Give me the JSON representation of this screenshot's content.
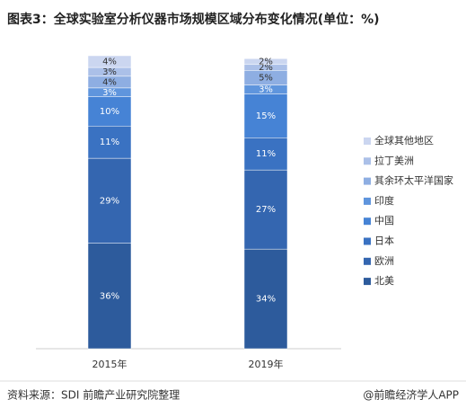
{
  "chart_data": {
    "type": "stacked_bar",
    "title": "图表3：全球实验室分析仪器市场规模区域分布变化情况(单位：%)",
    "categories": [
      "2015年",
      "2019年"
    ],
    "ylim": [
      0,
      100
    ],
    "series": [
      {
        "name": "北美",
        "color": "#2d5b9c",
        "values": [
          36,
          34
        ],
        "value_labels": [
          "36%",
          "34%"
        ]
      },
      {
        "name": "欧洲",
        "color": "#3466b0",
        "values": [
          29,
          27
        ],
        "value_labels": [
          "29%",
          "27%"
        ]
      },
      {
        "name": "日本",
        "color": "#3a72c2",
        "values": [
          11,
          11
        ],
        "value_labels": [
          "11%",
          "11%"
        ]
      },
      {
        "name": "中国",
        "color": "#4683d5",
        "values": [
          10,
          15
        ],
        "value_labels": [
          "10%",
          "15%"
        ]
      },
      {
        "name": "印度",
        "color": "#5f95dd",
        "values": [
          3,
          3
        ],
        "value_labels": [
          "3%",
          "3%"
        ]
      },
      {
        "name": "其余环太平洋国家",
        "color": "#8eaee2",
        "values": [
          4,
          5
        ],
        "value_labels": [
          "4%",
          "5%"
        ]
      },
      {
        "name": "拉丁美洲",
        "color": "#abc0e8",
        "values": [
          3,
          2
        ],
        "value_labels": [
          "3%",
          "2%"
        ]
      },
      {
        "name": "全球其他地区",
        "color": "#cbd6f0",
        "values": [
          4,
          2
        ],
        "value_labels": [
          "4%",
          "2%"
        ]
      }
    ],
    "source": "资料来源：SDI 前瞻产业研究院整理",
    "credit": "@前瞻经济学人APP"
  }
}
